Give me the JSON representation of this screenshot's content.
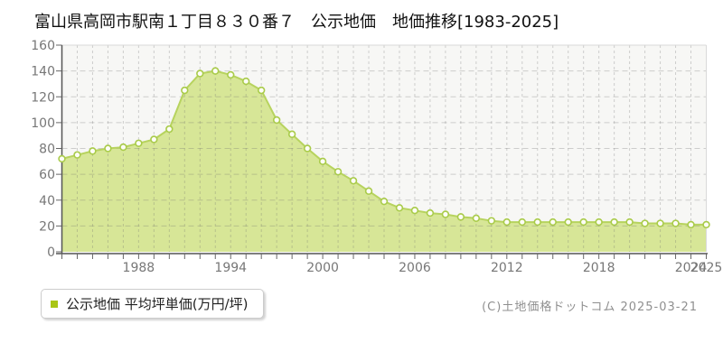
{
  "header": {
    "title": "富山県高岡市駅南１丁目８３０番７　公示地価　地価推移[1983-2025]"
  },
  "legend": {
    "label": "公示地価 平均坪単価(万円/坪)"
  },
  "footer": {
    "credit": "(C)土地価格ドットコム 2025-03-21"
  },
  "colors": {
    "plot_bg": "#f7f7f5",
    "area_fill": "#d7e697",
    "line": "#b7d35e",
    "point_fill": "#fdfdf6",
    "point_stroke": "#a9cb4a",
    "grid": "rgba(110,110,110,0.30)",
    "axis": "#555555",
    "tick": "#666666",
    "tick_label": "#777777",
    "border": "#d9d9d9",
    "legend_marker": "#a9c615"
  },
  "chart_data": {
    "type": "area",
    "title": "富山県高岡市駅南１丁目８３０番７ 公示地価 地価推移[1983-2025]",
    "x": [
      1983,
      1984,
      1985,
      1986,
      1987,
      1988,
      1989,
      1990,
      1991,
      1992,
      1993,
      1994,
      1995,
      1996,
      1997,
      1998,
      1999,
      2000,
      2001,
      2002,
      2003,
      2004,
      2005,
      2006,
      2007,
      2008,
      2009,
      2010,
      2011,
      2012,
      2013,
      2014,
      2015,
      2016,
      2017,
      2018,
      2019,
      2020,
      2021,
      2022,
      2023,
      2024,
      2025
    ],
    "series": [
      {
        "name": "公示地価 平均坪単価(万円/坪)",
        "values": [
          72,
          75,
          78,
          80,
          81,
          84,
          87,
          95,
          125,
          138,
          140,
          137,
          132,
          125,
          102,
          91,
          80,
          70,
          62,
          55,
          47,
          39,
          34,
          32,
          30,
          29,
          27,
          26,
          24,
          23,
          23,
          23,
          23,
          23,
          23,
          23,
          23,
          23,
          22,
          22,
          22,
          21,
          21
        ]
      }
    ],
    "xlabel": "",
    "ylabel": "",
    "unit_label": "万円/坪",
    "ylim": [
      0,
      160
    ],
    "yticks": [
      0,
      20,
      40,
      60,
      80,
      100,
      120,
      140,
      160
    ],
    "xticks": [
      1988,
      1994,
      2000,
      2006,
      2012,
      2018,
      2024,
      2025
    ],
    "grid": true,
    "legend_position": "bottom-left"
  }
}
